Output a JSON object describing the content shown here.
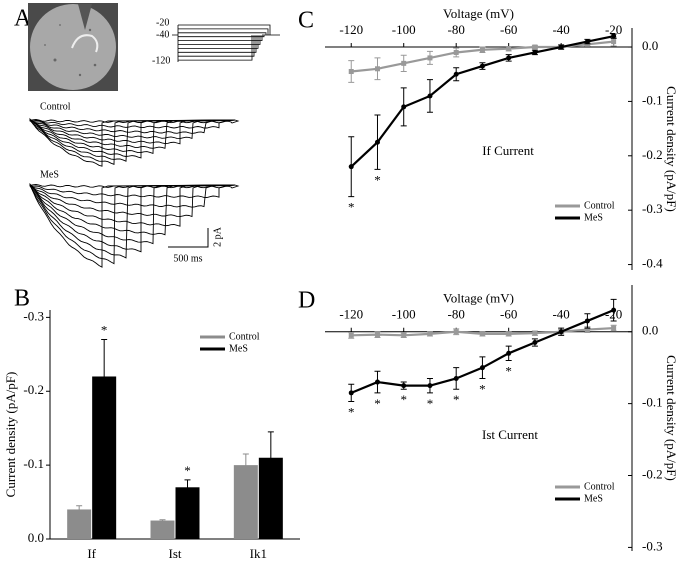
{
  "panel_a": {
    "label": "A",
    "protocol_labels": [
      "-20",
      "-40",
      "-120"
    ],
    "trace_labels": [
      "Control",
      "MeS"
    ],
    "scale_labels": [
      "2 pA",
      "500 ms"
    ]
  },
  "chart_data": [
    {
      "type": "bar",
      "panel_label": "B",
      "ylabel": "Current density (pA/pF)",
      "categories": [
        "If",
        "Ist",
        "Ik1"
      ],
      "series": [
        {
          "name": "Control",
          "color": "#8c8c8c",
          "values": [
            -0.04,
            -0.025,
            -0.1
          ],
          "errors": [
            0.005,
            0.001,
            0.015
          ]
        },
        {
          "name": "MeS",
          "color": "#000000",
          "values": [
            -0.22,
            -0.07,
            -0.11
          ],
          "errors": [
            0.05,
            0.01,
            0.035
          ],
          "annotations": [
            "*",
            "*",
            null
          ]
        }
      ],
      "ylim": [
        0,
        -0.31
      ],
      "yticks": [
        {
          "value": 0,
          "label": "0.0"
        },
        -0.1,
        -0.2,
        -0.3
      ],
      "legend": "upper right"
    },
    {
      "type": "line",
      "panel_label": "C",
      "title": "If Current",
      "xlabel": "Voltage (mV)",
      "ylabel": "Current density (pA/pF)",
      "x": [
        -120,
        -110,
        -100,
        -90,
        -80,
        -70,
        -60,
        -50,
        -40,
        -30,
        -20
      ],
      "series": [
        {
          "name": "Control",
          "color": "#999999",
          "values": [
            -0.045,
            -0.04,
            -0.03,
            -0.02,
            -0.01,
            -0.005,
            -0.003,
            0,
            0,
            0.005,
            0.01
          ],
          "errors": [
            0.02,
            0.02,
            0.015,
            0.012,
            0.008,
            0.005,
            0.004,
            0.003,
            0.003,
            0.003,
            0.008
          ]
        },
        {
          "name": "MeS",
          "color": "#000000",
          "values": [
            -0.22,
            -0.175,
            -0.11,
            -0.09,
            -0.05,
            -0.035,
            -0.02,
            -0.01,
            0,
            0.01,
            0.02
          ],
          "errors": [
            0.055,
            0.05,
            0.035,
            0.03,
            0.012,
            0.006,
            0.006,
            0.004,
            0.004,
            0.004,
            0.004
          ],
          "annotations": [
            "*",
            "*",
            null,
            null,
            null,
            null,
            null,
            null,
            null,
            null,
            null
          ]
        }
      ],
      "xlim": [
        -130,
        -13
      ],
      "xticks": [
        -120,
        -100,
        -80,
        -60,
        -40,
        -20
      ],
      "ylim": [
        -0.41,
        0.035
      ],
      "yticks": [
        {
          "value": 0,
          "label": "0.0"
        },
        -0.1,
        -0.2,
        -0.3,
        -0.4
      ],
      "legend": "lower right"
    },
    {
      "type": "line",
      "panel_label": "D",
      "title": "Ist Current",
      "xlabel": "Voltage (mV)",
      "ylabel": "Current density (pA/pF)",
      "x": [
        -120,
        -110,
        -100,
        -90,
        -80,
        -70,
        -60,
        -50,
        -40,
        -30,
        -20
      ],
      "series": [
        {
          "name": "Control",
          "color": "#999999",
          "values": [
            -0.005,
            -0.004,
            -0.005,
            -0.003,
            0,
            -0.003,
            -0.003,
            -0.002,
            0,
            0.003,
            0.005
          ],
          "errors": [
            0.004,
            0.004,
            0.003,
            0.003,
            0.004,
            0.003,
            0.003,
            0.003,
            0.003,
            0.004,
            0.004
          ]
        },
        {
          "name": "MeS",
          "color": "#000000",
          "values": [
            -0.085,
            -0.07,
            -0.075,
            -0.075,
            -0.065,
            -0.05,
            -0.03,
            -0.015,
            0,
            0.015,
            0.03
          ],
          "errors": [
            0.012,
            0.015,
            0.005,
            0.01,
            0.015,
            0.015,
            0.01,
            0.005,
            0.005,
            0.01,
            0.015
          ],
          "annotations": [
            "*",
            "*",
            "*",
            "*",
            "*",
            "*",
            "*",
            null,
            null,
            null,
            null
          ]
        }
      ],
      "xlim": [
        -130,
        -13
      ],
      "xticks": [
        -120,
        -100,
        -80,
        -60,
        -40,
        -20
      ],
      "ylim": [
        -0.305,
        0.065
      ],
      "yticks": [
        {
          "value": 0,
          "label": "0.0"
        },
        -0.1,
        -0.2,
        -0.3
      ],
      "legend": "lower right"
    }
  ]
}
